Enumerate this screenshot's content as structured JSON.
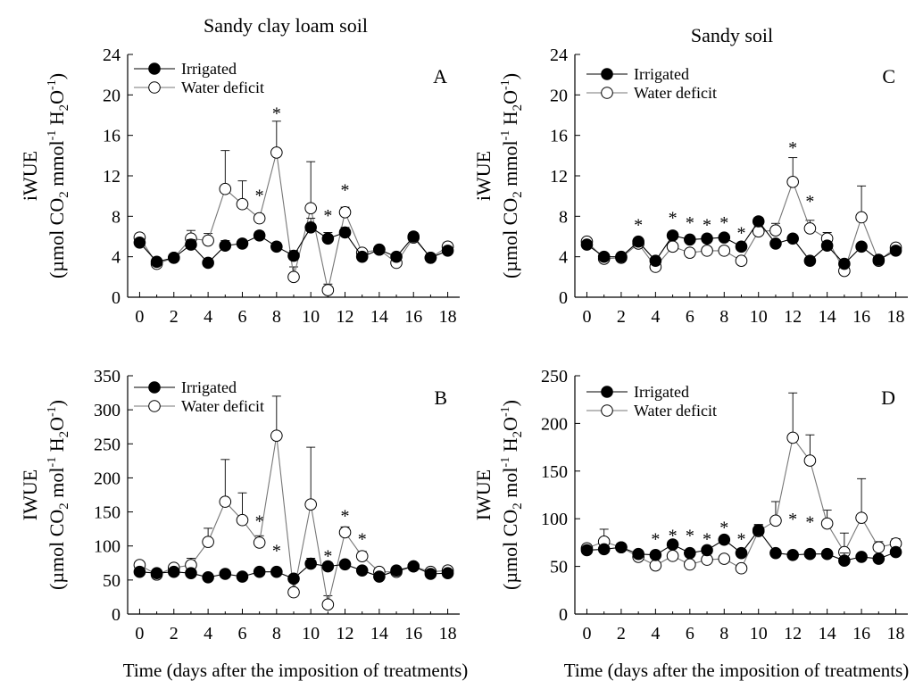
{
  "column_titles": [
    "Sandy clay loam soil",
    "Sandy soil"
  ],
  "xlabel": "Time (days after the imposition of treatments)",
  "ylabel_iwue_lower": [
    "iWUE",
    "(µmol CO",
    "2",
    " mmol",
    "-1",
    " H",
    "2",
    "O",
    "-1",
    ")"
  ],
  "ylabel_IWUE_upper": [
    "IWUE",
    "(µmol CO",
    "2",
    " mol",
    "-1",
    " H",
    "2",
    "O",
    "-1",
    ")"
  ],
  "series_names": [
    "Irrigated",
    "Water deficit"
  ],
  "significance_marker": "*",
  "chart_data": [
    {
      "type": "scatter",
      "panel": "A",
      "ylabel": "iWUE (µmol CO2 mmol-1 H2O-1)",
      "xlim": [
        -0.7,
        18.7
      ],
      "ylim": [
        0,
        24
      ],
      "xticks": [
        0,
        2,
        4,
        6,
        8,
        10,
        12,
        14,
        16,
        18
      ],
      "yticks": [
        0,
        4,
        8,
        12,
        16,
        20,
        24
      ],
      "x": [
        0,
        1,
        2,
        3,
        4,
        5,
        6,
        7,
        8,
        9,
        10,
        11,
        12,
        13,
        14,
        15,
        16,
        17,
        18
      ],
      "series": [
        {
          "name": "Irrigated",
          "marker": "filled",
          "values": [
            5.4,
            3.5,
            3.9,
            5.2,
            3.4,
            5.1,
            5.3,
            6.1,
            5.0,
            4.1,
            6.9,
            5.8,
            6.4,
            4.0,
            4.7,
            4.0,
            6.0,
            3.9,
            4.6
          ],
          "errors": [
            0.4,
            0.2,
            0.3,
            0.5,
            0.3,
            0.5,
            0.4,
            0.4,
            0.4,
            0.5,
            0.9,
            0.6,
            0.5,
            0.3,
            0.3,
            0.3,
            0.4,
            0.3,
            0.3
          ]
        },
        {
          "name": "Water deficit",
          "marker": "open",
          "values": [
            5.9,
            3.3,
            3.9,
            5.8,
            5.6,
            10.7,
            9.2,
            7.8,
            14.3,
            2.0,
            8.8,
            0.7,
            8.4,
            4.4,
            4.7,
            3.4,
            5.9,
            3.9,
            5.0
          ],
          "errors": [
            0.4,
            0.2,
            0.3,
            0.8,
            0.7,
            3.8,
            2.3,
            0.4,
            3.1,
            1.0,
            4.6,
            0.6,
            0.5,
            0.3,
            0.3,
            0.3,
            0.4,
            0.3,
            0.4
          ]
        }
      ],
      "significance": [
        {
          "x": 7,
          "y": 10.2
        },
        {
          "x": 8,
          "y": 18.3
        },
        {
          "x": 11,
          "y": 8.2
        },
        {
          "x": 12,
          "y": 10.7
        }
      ]
    },
    {
      "type": "scatter",
      "panel": "B",
      "ylabel": "IWUE (µmol CO2 mol-1 H2O-1)",
      "xlim": [
        -0.7,
        18.7
      ],
      "ylim": [
        0,
        350
      ],
      "xticks": [
        0,
        2,
        4,
        6,
        8,
        10,
        12,
        14,
        16,
        18
      ],
      "yticks": [
        0,
        50,
        100,
        150,
        200,
        250,
        300,
        350
      ],
      "x": [
        0,
        1,
        2,
        3,
        4,
        5,
        6,
        7,
        8,
        9,
        10,
        11,
        12,
        13,
        14,
        15,
        16,
        17,
        18
      ],
      "series": [
        {
          "name": "Irrigated",
          "marker": "filled",
          "values": [
            62,
            60,
            62,
            60,
            54,
            59,
            55,
            62,
            62,
            52,
            74,
            70,
            73,
            64,
            55,
            64,
            70,
            59,
            60
          ],
          "errors": [
            4,
            4,
            4,
            5,
            4,
            4,
            4,
            4,
            4,
            4,
            8,
            6,
            5,
            4,
            4,
            4,
            4,
            4,
            4
          ]
        },
        {
          "name": "Water deficit",
          "marker": "open",
          "values": [
            72,
            58,
            68,
            72,
            106,
            165,
            138,
            105,
            262,
            32,
            161,
            14,
            120,
            85,
            62,
            62,
            70,
            62,
            64
          ],
          "errors": [
            5,
            4,
            5,
            10,
            20,
            62,
            40,
            10,
            58,
            22,
            84,
            13,
            8,
            7,
            5,
            5,
            5,
            5,
            5
          ]
        }
      ],
      "significance": [
        {
          "x": 7,
          "y": 138
        },
        {
          "x": 8,
          "y": 95
        },
        {
          "x": 11,
          "y": 87
        },
        {
          "x": 12,
          "y": 146
        },
        {
          "x": 13,
          "y": 112
        }
      ]
    },
    {
      "type": "scatter",
      "panel": "C",
      "ylabel": "iWUE (µmol CO2 mmol-1 H2O-1)",
      "xlim": [
        -0.7,
        18.7
      ],
      "ylim": [
        0,
        24
      ],
      "xticks": [
        0,
        2,
        4,
        6,
        8,
        10,
        12,
        14,
        16,
        18
      ],
      "yticks": [
        0,
        4,
        8,
        12,
        16,
        20,
        24
      ],
      "x": [
        0,
        1,
        2,
        3,
        4,
        5,
        6,
        7,
        8,
        9,
        10,
        11,
        12,
        13,
        14,
        15,
        16,
        17,
        18
      ],
      "series": [
        {
          "name": "Irrigated",
          "marker": "filled",
          "values": [
            5.2,
            4.0,
            4.0,
            5.5,
            3.6,
            6.1,
            5.7,
            5.8,
            5.9,
            5.0,
            7.5,
            5.3,
            5.8,
            3.6,
            5.1,
            3.3,
            5.0,
            3.7,
            4.6
          ],
          "errors": [
            0.3,
            0.2,
            0.2,
            0.3,
            0.3,
            0.3,
            0.3,
            0.3,
            0.3,
            0.3,
            0.4,
            0.3,
            0.3,
            0.3,
            0.3,
            0.3,
            0.3,
            0.3,
            0.3
          ]
        },
        {
          "name": "Water deficit",
          "marker": "open",
          "values": [
            5.5,
            3.8,
            3.9,
            5.3,
            3.0,
            5.0,
            4.4,
            4.6,
            4.6,
            3.6,
            6.5,
            6.6,
            11.4,
            6.8,
            5.8,
            2.6,
            7.9,
            3.6,
            4.9
          ],
          "errors": [
            0.3,
            0.2,
            0.2,
            0.3,
            0.3,
            0.3,
            0.3,
            0.3,
            0.3,
            0.3,
            0.5,
            0.7,
            2.4,
            0.8,
            0.6,
            0.7,
            3.1,
            0.3,
            0.4
          ]
        }
      ],
      "significance": [
        {
          "x": 3,
          "y": 7.3
        },
        {
          "x": 5,
          "y": 8.0
        },
        {
          "x": 6,
          "y": 7.5
        },
        {
          "x": 7,
          "y": 7.3
        },
        {
          "x": 8,
          "y": 7.5
        },
        {
          "x": 9,
          "y": 6.5
        },
        {
          "x": 12,
          "y": 14.9
        },
        {
          "x": 13,
          "y": 9.6
        }
      ]
    },
    {
      "type": "scatter",
      "panel": "D",
      "ylabel": "IWUE (µmol CO2 mol-1 H2O-1)",
      "xlim": [
        -0.7,
        18.7
      ],
      "ylim": [
        0,
        250
      ],
      "xticks": [
        0,
        2,
        4,
        6,
        8,
        10,
        12,
        14,
        16,
        18
      ],
      "yticks": [
        0,
        50,
        100,
        150,
        200,
        250
      ],
      "x": [
        0,
        1,
        2,
        3,
        4,
        5,
        6,
        7,
        8,
        9,
        10,
        11,
        12,
        13,
        14,
        15,
        16,
        17,
        18
      ],
      "series": [
        {
          "name": "Irrigated",
          "marker": "filled",
          "values": [
            67,
            68,
            70,
            63,
            62,
            73,
            64,
            67,
            78,
            64,
            88,
            64,
            62,
            63,
            63,
            56,
            60,
            58,
            65
          ],
          "errors": [
            3,
            3,
            3,
            3,
            3,
            4,
            3,
            3,
            4,
            3,
            6,
            3,
            3,
            3,
            3,
            8,
            3,
            3,
            3
          ]
        },
        {
          "name": "Water deficit",
          "marker": "open",
          "values": [
            69,
            76,
            70,
            60,
            51,
            61,
            52,
            57,
            58,
            48,
            87,
            98,
            185,
            161,
            95,
            65,
            101,
            70,
            74
          ],
          "errors": [
            4,
            13,
            3,
            3,
            3,
            3,
            3,
            3,
            3,
            3,
            6,
            20,
            47,
            27,
            14,
            20,
            41,
            6,
            5
          ]
        }
      ],
      "significance": [
        {
          "x": 4,
          "y": 80
        },
        {
          "x": 5,
          "y": 84
        },
        {
          "x": 6,
          "y": 84
        },
        {
          "x": 7,
          "y": 80
        },
        {
          "x": 8,
          "y": 92
        },
        {
          "x": 9,
          "y": 80
        },
        {
          "x": 12,
          "y": 101
        },
        {
          "x": 13,
          "y": 98
        }
      ]
    }
  ]
}
